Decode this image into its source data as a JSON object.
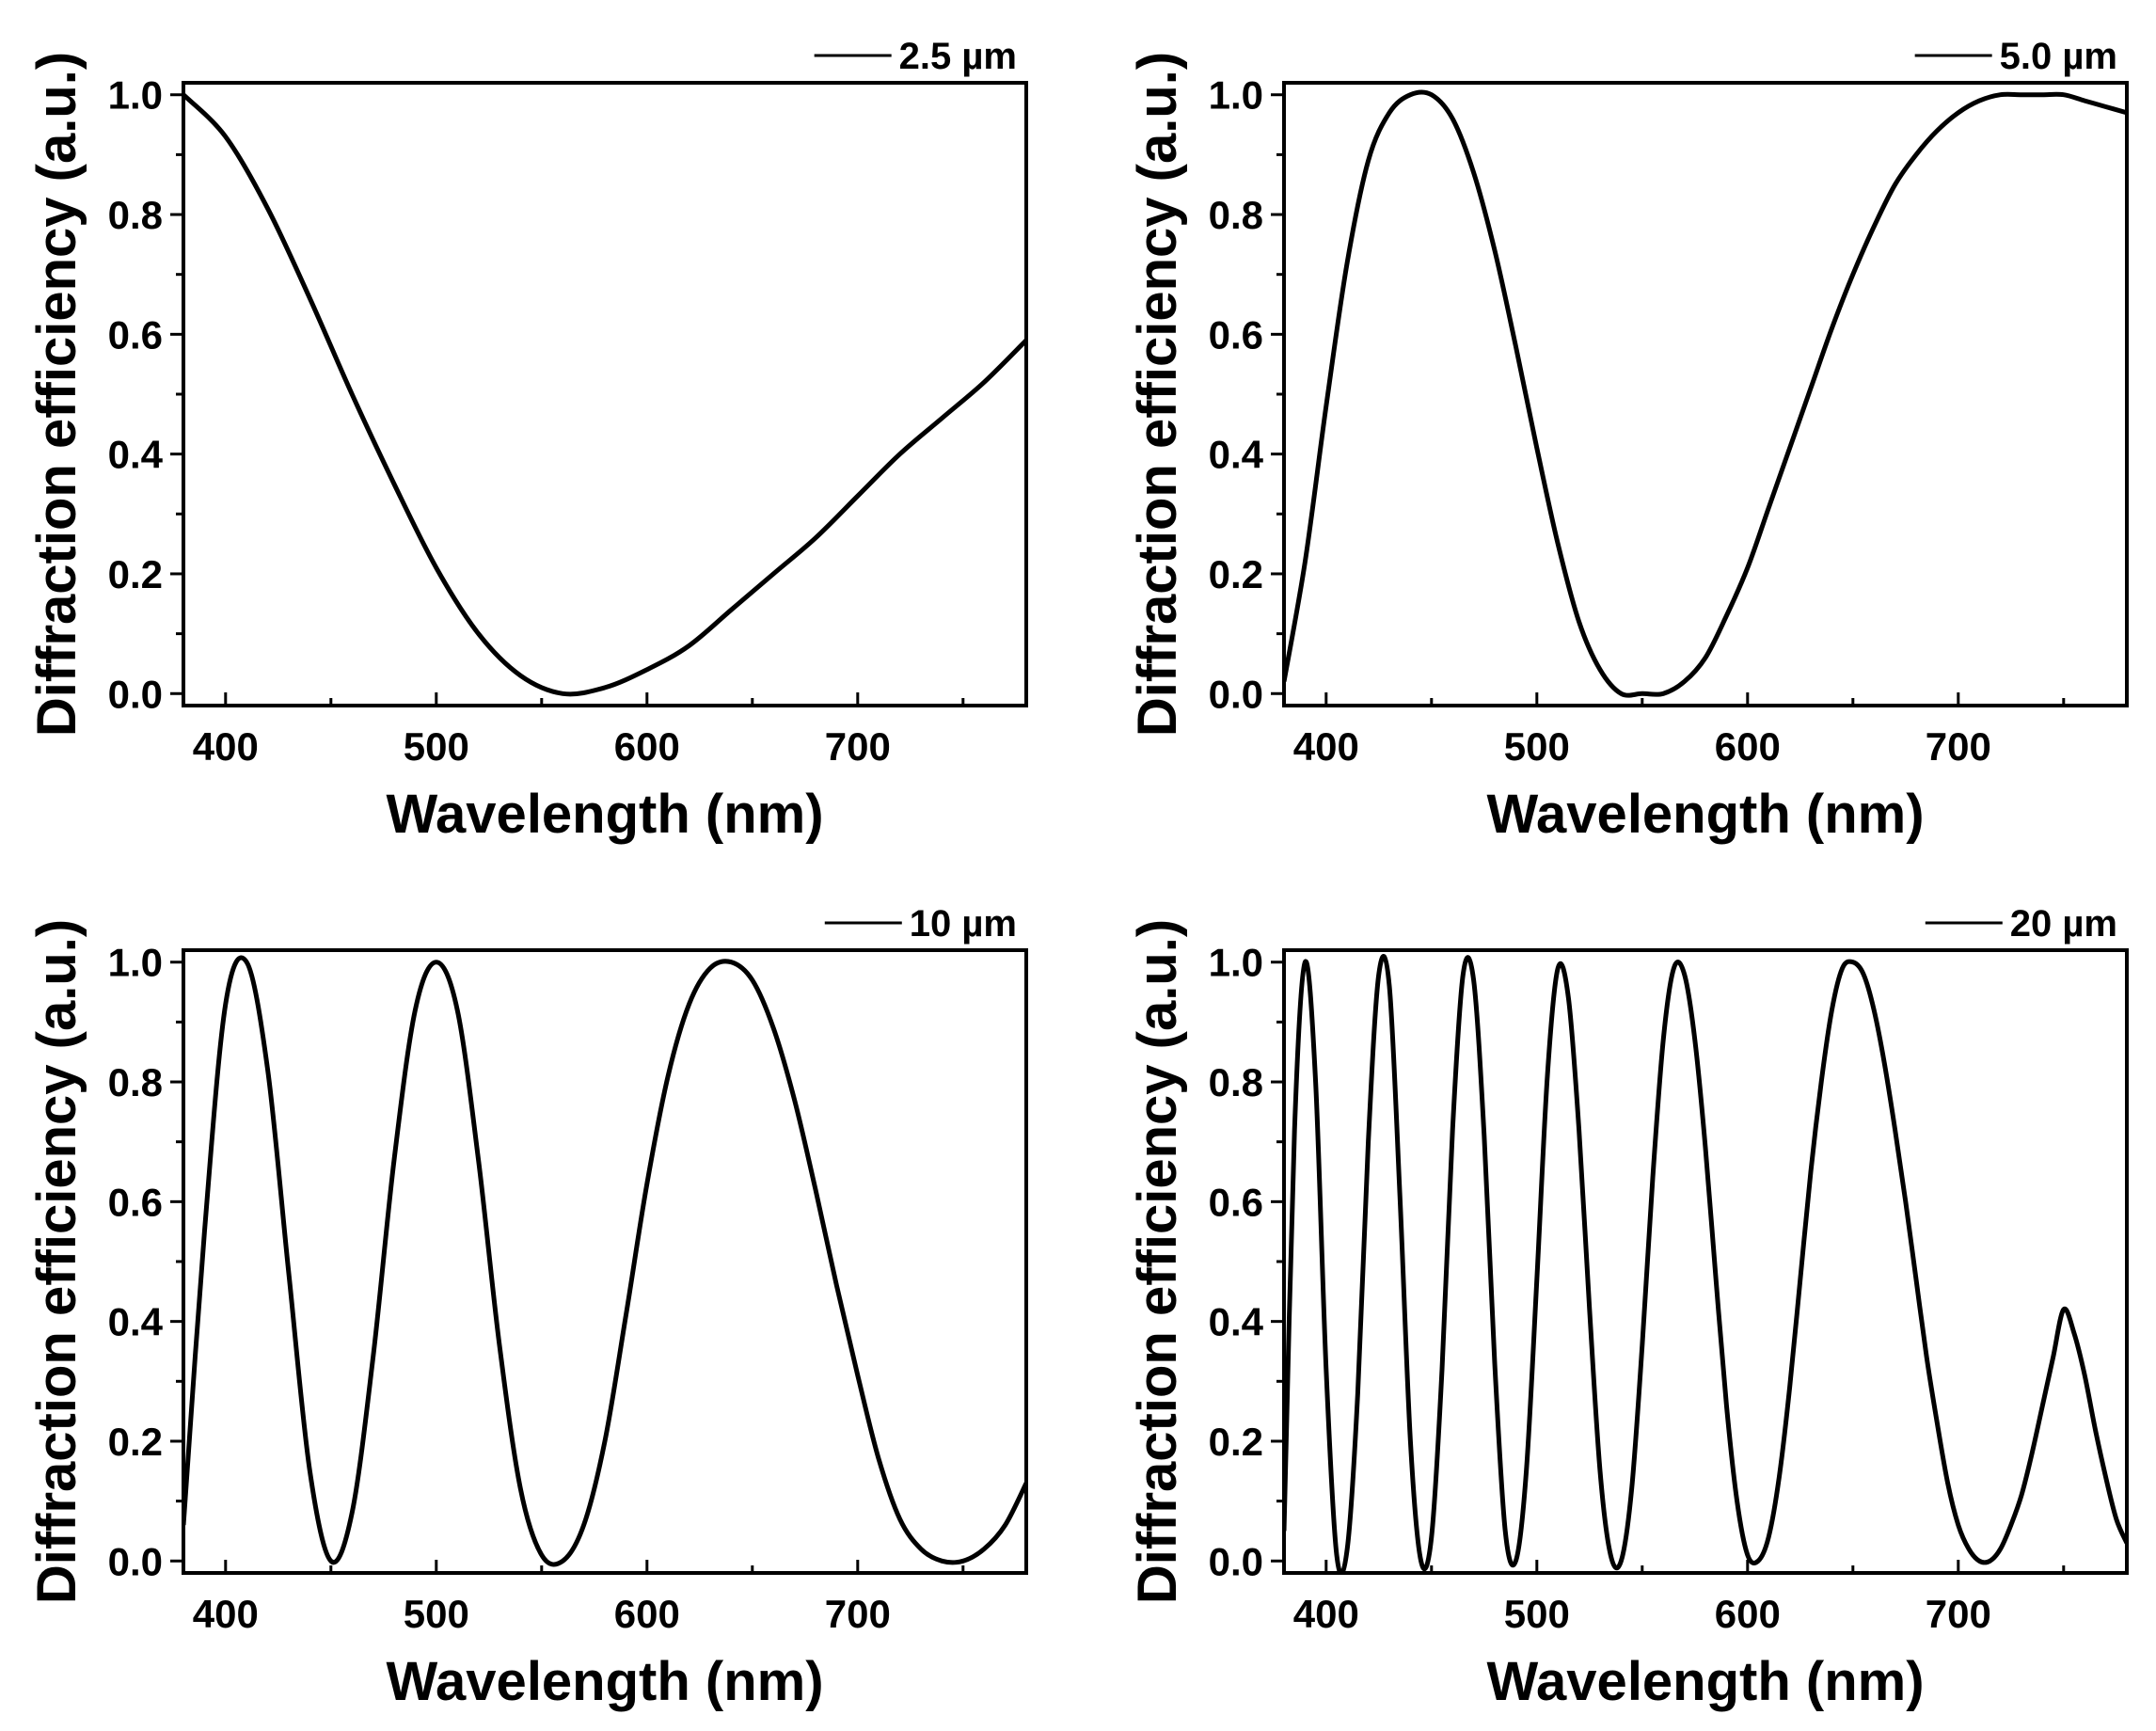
{
  "chart_data": [
    {
      "type": "line",
      "title": "",
      "xlabel": "Wavelength (nm)",
      "ylabel": "Diffraction efficiency (a.u.)",
      "xlim": [
        380,
        780
      ],
      "ylim": [
        -0.02,
        1.02
      ],
      "x_ticks": [
        400,
        500,
        600,
        700
      ],
      "x_tick_labels": [
        "400",
        "500",
        "600",
        "700"
      ],
      "y_ticks": [
        0.0,
        0.2,
        0.4,
        0.6,
        0.8,
        1.0
      ],
      "y_tick_labels": [
        "0.0",
        "0.2",
        "0.4",
        "0.6",
        "0.8",
        "1.0"
      ],
      "legend_position": "top-right",
      "series": [
        {
          "name": "2.5 µm",
          "x": [
            380,
            400,
            420,
            440,
            460,
            480,
            500,
            520,
            540,
            560,
            580,
            600,
            620,
            640,
            660,
            680,
            700,
            720,
            740,
            760,
            780
          ],
          "y": [
            1.0,
            0.93,
            0.81,
            0.66,
            0.5,
            0.35,
            0.21,
            0.1,
            0.03,
            0.0,
            0.01,
            0.04,
            0.08,
            0.14,
            0.2,
            0.26,
            0.33,
            0.4,
            0.46,
            0.52,
            0.59
          ]
        },
        {
          "name": "5.0 µm",
          "x": [
            380,
            390,
            400,
            410,
            420,
            430,
            440,
            450,
            460,
            470,
            480,
            490,
            500,
            510,
            520,
            530,
            540,
            550,
            560,
            570,
            580,
            590,
            600,
            610,
            620,
            630,
            640,
            650,
            660,
            670,
            680,
            690,
            700,
            710,
            720,
            730,
            740,
            750,
            760,
            770,
            780
          ],
          "y": [
            0.02,
            0.22,
            0.48,
            0.72,
            0.89,
            0.97,
            1.0,
            1.0,
            0.96,
            0.87,
            0.74,
            0.58,
            0.41,
            0.25,
            0.12,
            0.04,
            0.0,
            0.0,
            0.0,
            0.02,
            0.06,
            0.13,
            0.21,
            0.31,
            0.41,
            0.51,
            0.61,
            0.7,
            0.78,
            0.85,
            0.9,
            0.94,
            0.97,
            0.99,
            1.0,
            1.0,
            1.0,
            1.0,
            0.99,
            0.98,
            0.97
          ]
        },
        {
          "name": "10 µm",
          "x": [
            380,
            390,
            400,
            410,
            420,
            430,
            440,
            450,
            460,
            470,
            480,
            490,
            500,
            510,
            520,
            530,
            540,
            550,
            560,
            570,
            580,
            590,
            600,
            610,
            620,
            630,
            640,
            650,
            660,
            670,
            680,
            690,
            700,
            710,
            720,
            730,
            740,
            750,
            760,
            770,
            780
          ],
          "y": [
            0.06,
            0.55,
            0.93,
            1.0,
            0.82,
            0.48,
            0.15,
            0.0,
            0.08,
            0.34,
            0.67,
            0.92,
            1.0,
            0.92,
            0.67,
            0.36,
            0.12,
            0.01,
            0.0,
            0.06,
            0.2,
            0.41,
            0.63,
            0.81,
            0.93,
            0.99,
            1.0,
            0.97,
            0.89,
            0.77,
            0.62,
            0.46,
            0.31,
            0.17,
            0.07,
            0.02,
            0.0,
            0.0,
            0.02,
            0.06,
            0.13
          ]
        },
        {
          "name": "20 µm",
          "x": [
            380,
            385,
            390,
            395,
            400,
            405,
            410,
            415,
            420,
            425,
            430,
            435,
            440,
            445,
            450,
            455,
            460,
            465,
            470,
            475,
            480,
            485,
            490,
            495,
            500,
            505,
            510,
            515,
            520,
            525,
            530,
            535,
            540,
            545,
            550,
            555,
            560,
            565,
            570,
            575,
            580,
            585,
            590,
            595,
            600,
            605,
            610,
            615,
            620,
            625,
            630,
            635,
            640,
            645,
            650,
            655,
            660,
            665,
            670,
            675,
            680,
            685,
            690,
            695,
            700,
            705,
            710,
            715,
            720,
            725,
            730,
            735,
            740,
            745,
            750,
            755,
            760,
            765,
            770,
            775,
            780
          ],
          "y": [
            0.05,
            0.72,
            1.0,
            0.8,
            0.32,
            0.01,
            0.02,
            0.28,
            0.7,
            0.98,
            0.96,
            0.61,
            0.2,
            0.0,
            0.04,
            0.32,
            0.72,
            0.98,
            0.97,
            0.71,
            0.33,
            0.05,
            0.0,
            0.15,
            0.47,
            0.81,
            0.99,
            0.94,
            0.72,
            0.42,
            0.15,
            0.01,
            0.0,
            0.12,
            0.36,
            0.64,
            0.87,
            0.99,
            0.98,
            0.87,
            0.69,
            0.47,
            0.26,
            0.1,
            0.01,
            0.0,
            0.04,
            0.14,
            0.29,
            0.47,
            0.65,
            0.8,
            0.92,
            0.99,
            1.0,
            0.98,
            0.92,
            0.83,
            0.72,
            0.6,
            0.47,
            0.34,
            0.23,
            0.13,
            0.06,
            0.02,
            0.0,
            0.0,
            0.02,
            0.06,
            0.11,
            0.18,
            0.26,
            0.34,
            0.42,
            0.38,
            0.31,
            0.22,
            0.14,
            0.07,
            0.03
          ]
        }
      ]
    }
  ]
}
